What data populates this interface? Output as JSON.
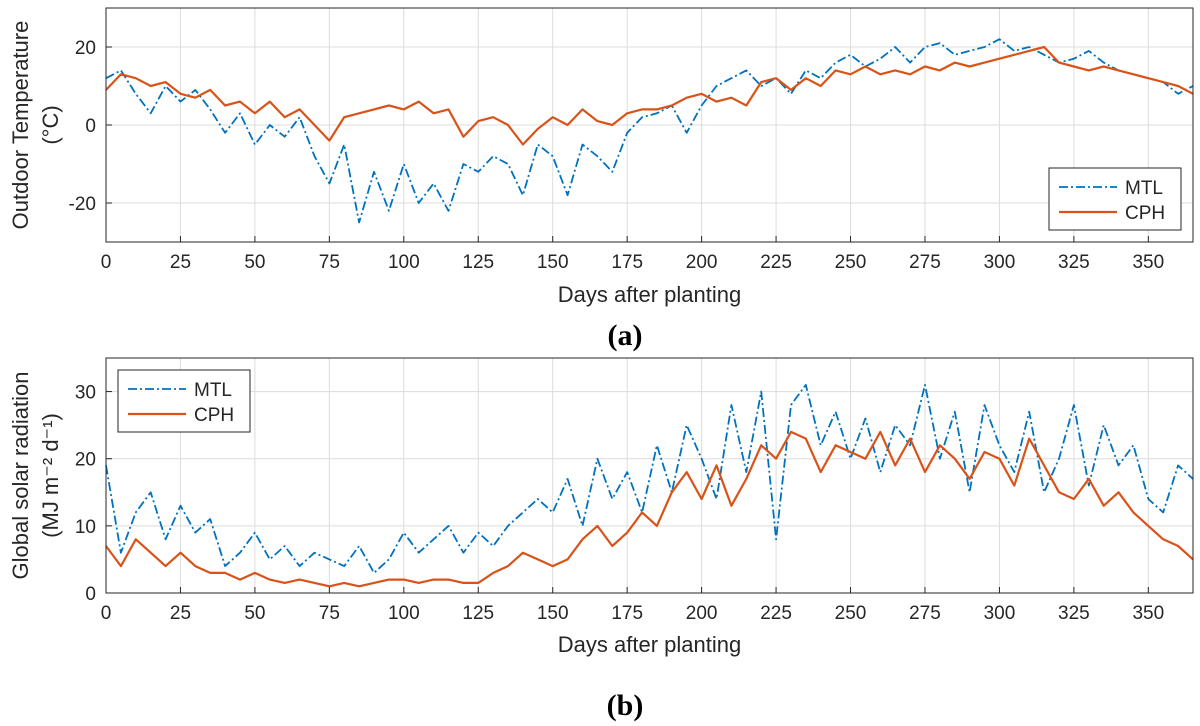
{
  "figure": {
    "panel_a_tag": "(a)",
    "panel_b_tag": "(b)"
  },
  "colors": {
    "MTL": "#0072BD",
    "CPH": "#D95319",
    "grid": "#dcdcdc",
    "axis": "#262626"
  },
  "chart_data": [
    {
      "type": "line",
      "xlabel": "Days after planting",
      "ylabel_lines": [
        "Outdoor Temperature",
        "(°C)"
      ],
      "xlim": [
        0,
        365
      ],
      "ylim": [
        -30,
        30
      ],
      "xticks": [
        0,
        25,
        50,
        75,
        100,
        125,
        150,
        175,
        200,
        225,
        250,
        275,
        300,
        325,
        350
      ],
      "yticks": [
        -20,
        0,
        20
      ],
      "grid": true,
      "legend": "bottom-right",
      "x": [
        0,
        5,
        10,
        15,
        20,
        25,
        30,
        35,
        40,
        45,
        50,
        55,
        60,
        65,
        70,
        75,
        80,
        85,
        90,
        95,
        100,
        105,
        110,
        115,
        120,
        125,
        130,
        135,
        140,
        145,
        150,
        155,
        160,
        165,
        170,
        175,
        180,
        185,
        190,
        195,
        200,
        205,
        210,
        215,
        220,
        225,
        230,
        235,
        240,
        245,
        250,
        255,
        260,
        265,
        270,
        275,
        280,
        285,
        290,
        295,
        300,
        305,
        310,
        315,
        320,
        325,
        330,
        335,
        340,
        345,
        350,
        355,
        360,
        365
      ],
      "series": [
        {
          "name": "MTL",
          "style": "dash-dot",
          "values": [
            12,
            14,
            8,
            3,
            10,
            6,
            9,
            4,
            -2,
            3,
            -5,
            0,
            -3,
            2,
            -8,
            -15,
            -5,
            -25,
            -12,
            -22,
            -10,
            -20,
            -15,
            -22,
            -10,
            -12,
            -8,
            -10,
            -18,
            -5,
            -8,
            -18,
            -5,
            -8,
            -12,
            -2,
            2,
            3,
            5,
            -2,
            5,
            10,
            12,
            14,
            10,
            12,
            8,
            14,
            12,
            16,
            18,
            15,
            17,
            20,
            16,
            20,
            21,
            18,
            19,
            20,
            22,
            19,
            20,
            18,
            16,
            17,
            19,
            16,
            14,
            13,
            12,
            11,
            8,
            10
          ]
        },
        {
          "name": "CPH",
          "style": "solid",
          "values": [
            9,
            13,
            12,
            10,
            11,
            8,
            7,
            9,
            5,
            6,
            3,
            6,
            2,
            4,
            0,
            -4,
            2,
            3,
            4,
            5,
            4,
            6,
            3,
            4,
            -3,
            1,
            2,
            0,
            -5,
            -1,
            2,
            0,
            4,
            1,
            0,
            3,
            4,
            4,
            5,
            7,
            8,
            6,
            7,
            5,
            11,
            12,
            9,
            12,
            10,
            14,
            13,
            15,
            13,
            14,
            13,
            15,
            14,
            16,
            15,
            16,
            17,
            18,
            19,
            20,
            16,
            15,
            14,
            15,
            14,
            13,
            12,
            11,
            10,
            8
          ]
        }
      ]
    },
    {
      "type": "line",
      "xlabel": "Days after planting",
      "ylabel_lines": [
        "Global solar radiation",
        "(MJ m⁻² d⁻¹)"
      ],
      "xlim": [
        0,
        365
      ],
      "ylim": [
        0,
        35
      ],
      "xticks": [
        0,
        25,
        50,
        75,
        100,
        125,
        150,
        175,
        200,
        225,
        250,
        275,
        300,
        325,
        350
      ],
      "yticks": [
        0,
        10,
        20,
        30
      ],
      "grid": true,
      "legend": "top-left",
      "x": [
        0,
        5,
        10,
        15,
        20,
        25,
        30,
        35,
        40,
        45,
        50,
        55,
        60,
        65,
        70,
        75,
        80,
        85,
        90,
        95,
        100,
        105,
        110,
        115,
        120,
        125,
        130,
        135,
        140,
        145,
        150,
        155,
        160,
        165,
        170,
        175,
        180,
        185,
        190,
        195,
        200,
        205,
        210,
        215,
        220,
        225,
        230,
        235,
        240,
        245,
        250,
        255,
        260,
        265,
        270,
        275,
        280,
        285,
        290,
        295,
        300,
        305,
        310,
        315,
        320,
        325,
        330,
        335,
        340,
        345,
        350,
        355,
        360,
        365
      ],
      "series": [
        {
          "name": "MTL",
          "style": "dash-dot",
          "values": [
            19,
            6,
            12,
            15,
            8,
            13,
            9,
            11,
            4,
            6,
            9,
            5,
            7,
            4,
            6,
            5,
            4,
            7,
            3,
            5,
            9,
            6,
            8,
            10,
            6,
            9,
            7,
            10,
            12,
            14,
            12,
            17,
            10,
            20,
            14,
            18,
            12,
            22,
            15,
            25,
            20,
            14,
            28,
            18,
            30,
            8,
            28,
            31,
            22,
            27,
            20,
            26,
            18,
            25,
            22,
            31,
            20,
            27,
            15,
            28,
            22,
            18,
            27,
            15,
            20,
            28,
            16,
            25,
            19,
            22,
            14,
            12,
            19,
            17
          ]
        },
        {
          "name": "CPH",
          "style": "solid",
          "values": [
            7,
            4,
            8,
            6,
            4,
            6,
            4,
            3,
            3,
            2,
            3,
            2,
            1.5,
            2,
            1.5,
            1,
            1.5,
            1,
            1.5,
            2,
            2,
            1.5,
            2,
            2,
            1.5,
            1.5,
            3,
            4,
            6,
            5,
            4,
            5,
            8,
            10,
            7,
            9,
            12,
            10,
            15,
            18,
            14,
            19,
            13,
            17,
            22,
            20,
            24,
            23,
            18,
            22,
            21,
            20,
            24,
            19,
            23,
            18,
            22,
            20,
            17,
            21,
            20,
            16,
            23,
            19,
            15,
            14,
            17,
            13,
            15,
            12,
            10,
            8,
            7,
            5
          ]
        }
      ]
    }
  ]
}
